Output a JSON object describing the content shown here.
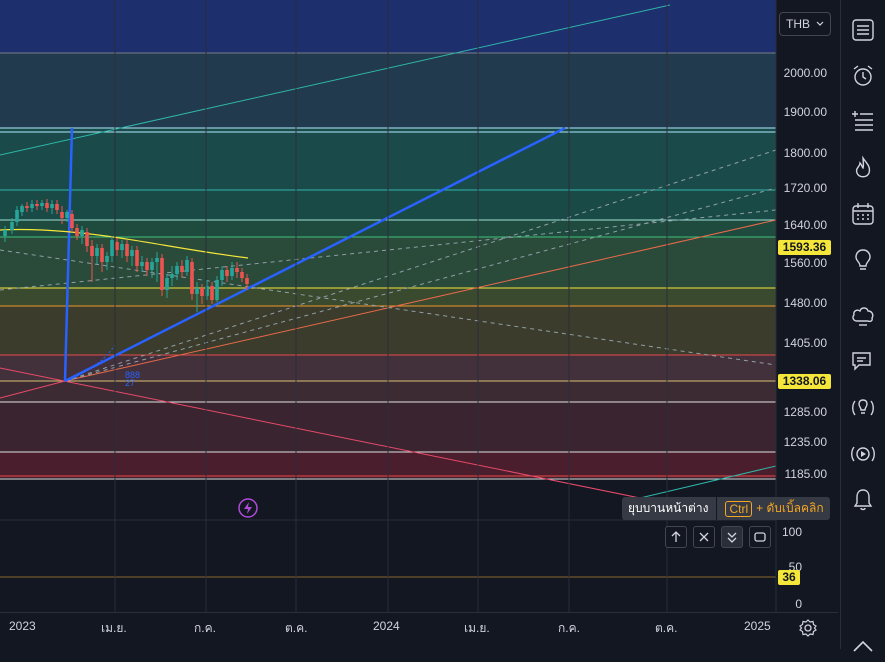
{
  "currency": {
    "label": "THB",
    "chevron_icon": "chevron-down-icon"
  },
  "price_axis": {
    "labels": [
      "2000.00",
      "1900.00",
      "1800.00",
      "1720.00",
      "1640.00",
      "1560.00",
      "1480.00",
      "1405.00",
      "1285.00",
      "1235.00",
      "1185.00"
    ],
    "highlight_upper": "1593.36",
    "highlight_lower": "1338.06"
  },
  "indicator_axis": {
    "labels": [
      "100",
      "50",
      "0"
    ],
    "highlight": "36"
  },
  "time_axis": {
    "labels": [
      "2023",
      "เม.ย.",
      "ก.ค.",
      "ต.ค.",
      "2024",
      "เม.ย.",
      "ก.ค.",
      "ต.ค.",
      "2025"
    ]
  },
  "fib_annotation": {
    "lines": [
      "888",
      "27"
    ]
  },
  "tooltip": {
    "text": "ยุบบานหน้าต่าง",
    "key": "Ctrl",
    "hint": "+ ดับเบิ้ลคลิก"
  },
  "pane_buttons": [
    "move-up-icon",
    "close-icon",
    "collapse-icon",
    "maximize-icon"
  ],
  "toolbar_icons": [
    "watchlist-icon",
    "alert-clock-icon",
    "add-list-icon",
    "hotlist-icon",
    "calendar-icon",
    "ideas-bulb-icon",
    "chat-cloud-icon",
    "chat-bubble-icon",
    "idea-stream-icon",
    "live-stream-icon",
    "notification-bell-icon"
  ],
  "colors": {
    "accent": "#2962ff",
    "price_tag": "#f5e63a",
    "tooltip_key": "#f5a623"
  }
}
